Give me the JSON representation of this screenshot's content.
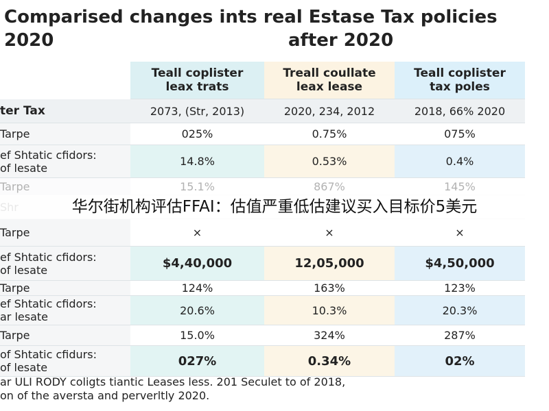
{
  "title": {
    "line1": "Comparised changes ints real Estase Tax policies",
    "left": "2020",
    "center": "after 2020"
  },
  "table": {
    "columns": [
      [
        "Teall coplister",
        "leax trats"
      ],
      [
        "Treall coullate",
        "leax lease"
      ],
      [
        "Teall coplister",
        "tax poles"
      ]
    ],
    "rows": [
      {
        "label": [
          "ter Tax"
        ],
        "cells": [
          "2073, (Str, 2013)",
          "2020, 234, 2012",
          "2018, 66% 2020"
        ]
      },
      {
        "label": [
          "Tarpe"
        ],
        "cells": [
          "025%",
          "0.75%",
          "075%"
        ]
      },
      {
        "label": [
          "ef Shtatic cfidors:",
          "of lesate"
        ],
        "cells": [
          "14.8%",
          "0.53%",
          "0.4%"
        ]
      },
      {
        "label": [
          "Tarpe"
        ],
        "cells": [
          "15.1%",
          "867%",
          "145%"
        ]
      },
      {
        "label": [
          "Shr"
        ],
        "cells": []
      },
      {
        "label": [
          "Tarpe"
        ],
        "cells": [
          "×",
          "×",
          "×"
        ]
      },
      {
        "label": [
          "ef Shtatic cfidors:",
          "of lesate"
        ],
        "cells": [
          "$4,40,000",
          "12,05,000",
          "$4,50,000"
        ]
      },
      {
        "label": [
          "Tarpe"
        ],
        "cells": [
          "124%",
          "163%",
          "123%"
        ]
      },
      {
        "label": [
          "ef Shtatic cfidors:",
          "ar lesate"
        ],
        "cells": [
          "20.6%",
          "10.3%",
          "20.3%"
        ]
      },
      {
        "label": [
          "Tarpe"
        ],
        "cells": [
          "15.0%",
          "324%",
          "287%"
        ]
      },
      {
        "label": [
          "of Shtatic cfidurs:",
          "of lesate"
        ],
        "cells": [
          "027%",
          "0.34%",
          "02%"
        ]
      }
    ]
  },
  "footer": [
    "ar ULI RODY coligts tiantic Leases less. 201 Seculet to of 2018,",
    "on of the aversta and perverltly 2020."
  ],
  "banner": "华尔街机构评估FFAI：估值严重低估建议买入目标价5美元"
}
